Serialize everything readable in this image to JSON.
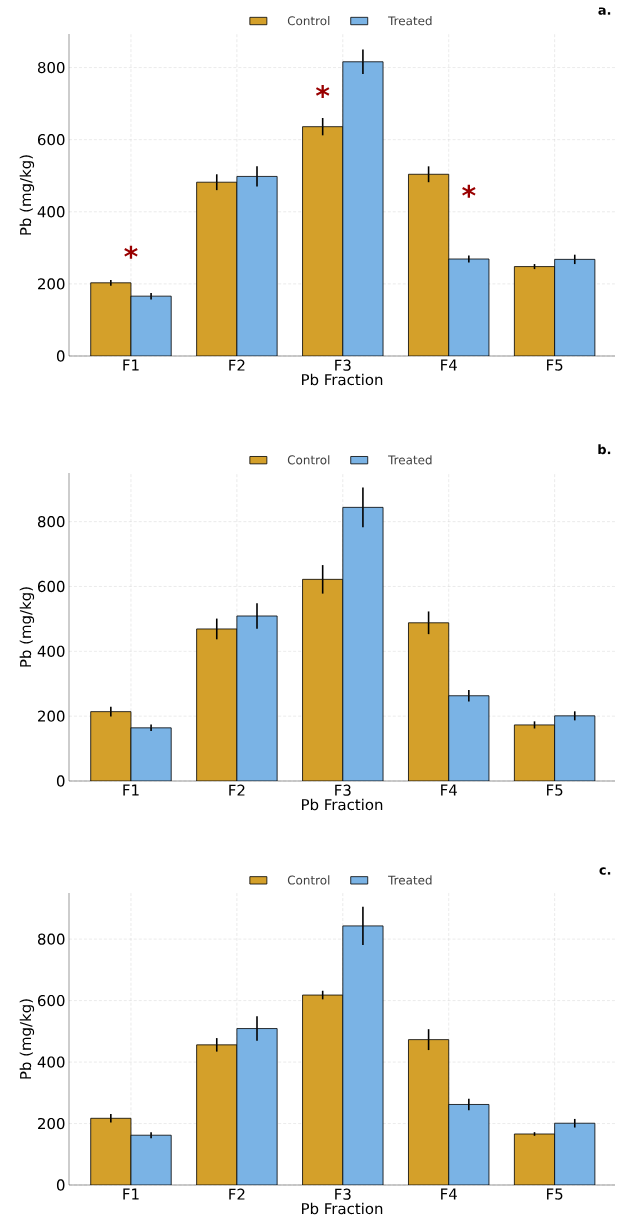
{
  "chart_data": [
    {
      "type": "bar",
      "title": "a.",
      "xlabel": "Pb Fraction",
      "ylabel": "Pb (mg/kg)",
      "categories": [
        "F1",
        "F2",
        "F3",
        "F4",
        "F5"
      ],
      "series": [
        {
          "name": "Control",
          "color": "#d4a02a",
          "values": [
            203,
            482,
            636,
            504,
            248
          ],
          "errors": [
            8,
            22,
            24,
            22,
            7
          ]
        },
        {
          "name": "Treated",
          "color": "#7ab3e5",
          "values": [
            166,
            498,
            816,
            269,
            268
          ],
          "errors": [
            9,
            28,
            34,
            10,
            13
          ]
        }
      ],
      "ylim": [
        0,
        893
      ],
      "yticks": [
        0,
        200,
        400,
        600,
        800
      ],
      "grid": true,
      "legend": "top",
      "annotations": [
        "*",
        "*",
        "*"
      ]
    },
    {
      "type": "bar",
      "title": "b.",
      "xlabel": "Pb Fraction",
      "ylabel": "Pb (mg/kg)",
      "categories": [
        "F1",
        "F2",
        "F3",
        "F4",
        "F5"
      ],
      "series": [
        {
          "name": "Control",
          "color": "#d4a02a",
          "values": [
            214,
            469,
            622,
            488,
            173
          ],
          "errors": [
            15,
            32,
            44,
            35,
            11
          ]
        },
        {
          "name": "Treated",
          "color": "#7ab3e5",
          "values": [
            164,
            509,
            844,
            263,
            201
          ],
          "errors": [
            10,
            39,
            61,
            18,
            14
          ]
        }
      ],
      "ylim": [
        0,
        950
      ],
      "yticks": [
        0,
        200,
        400,
        600,
        800
      ],
      "grid": true,
      "legend": "top"
    },
    {
      "type": "bar",
      "title": "c.",
      "xlabel": "Pb Fraction",
      "ylabel": "Pb (mg/kg)",
      "categories": [
        "F1",
        "F2",
        "F3",
        "F4",
        "F5"
      ],
      "series": [
        {
          "name": "Control",
          "color": "#d4a02a",
          "values": [
            217,
            456,
            618,
            473,
            166
          ],
          "errors": [
            14,
            22,
            14,
            34,
            6
          ]
        },
        {
          "name": "Treated",
          "color": "#7ab3e5",
          "values": [
            162,
            509,
            843,
            262,
            201
          ],
          "errors": [
            10,
            40,
            62,
            19,
            14
          ]
        }
      ],
      "ylim": [
        0,
        950
      ],
      "yticks": [
        0,
        200,
        400,
        600,
        800
      ],
      "grid": true,
      "legend": "top"
    }
  ]
}
